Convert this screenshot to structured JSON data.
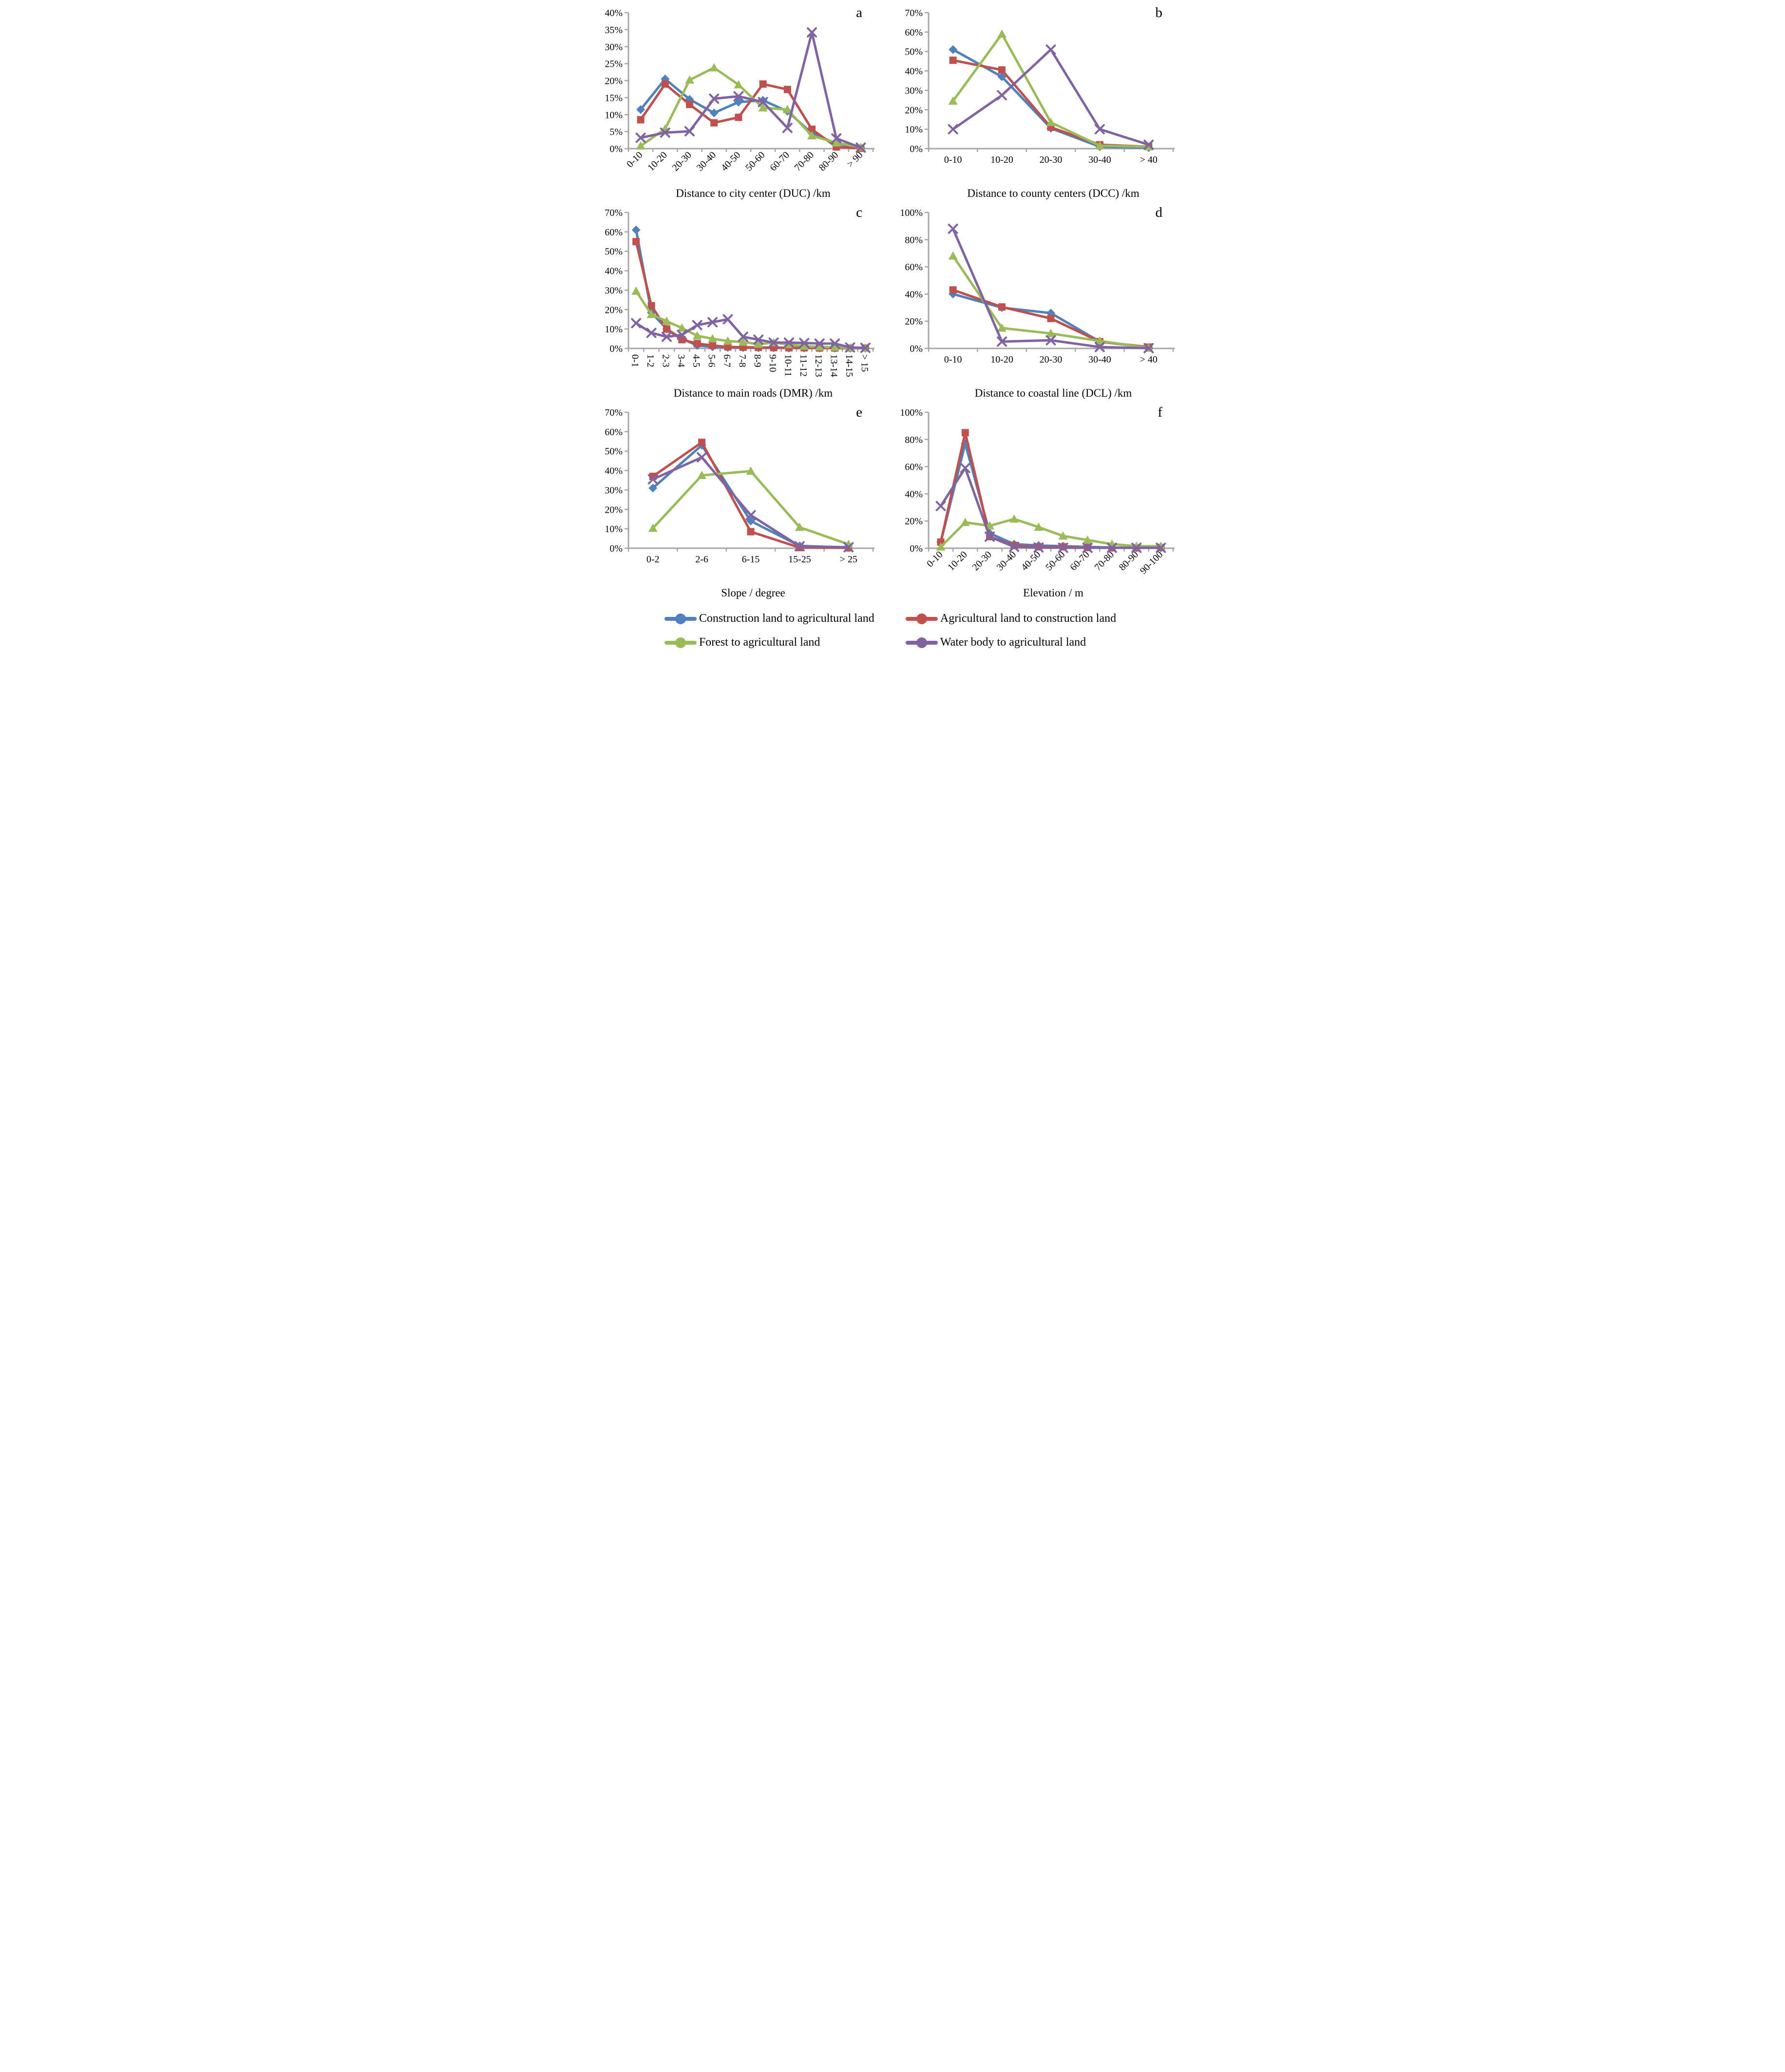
{
  "figure": {
    "axis_color": "#a6a6a6",
    "background": "#ffffff"
  },
  "chart_data": [
    {
      "id": "a",
      "type": "line",
      "panel_label": "a",
      "xlabel": "Distance to city center (DUC) /km",
      "ylabel": "",
      "ylim": [
        0,
        40
      ],
      "ytick_step": 5,
      "ytick_format": "percent",
      "grid": false,
      "x_label_rotation": -45,
      "categories": [
        "0-10",
        "10-20",
        "20-30",
        "30-40",
        "40-50",
        "50-60",
        "60-70",
        "70-80",
        "80-90",
        "> 90"
      ],
      "series": [
        {
          "name": "Construction land to agricultural land",
          "color": "#4F81BD",
          "marker": "diamond",
          "values": [
            11.5,
            20.5,
            14.5,
            10.5,
            13.7,
            14.2,
            11,
            4.5,
            1.5,
            0.2
          ]
        },
        {
          "name": "Agricultural land to construction land",
          "color": "#C0504D",
          "marker": "square",
          "values": [
            8.5,
            19,
            13,
            7.6,
            9.2,
            19,
            17.4,
            5.7,
            0.5,
            0.1
          ]
        },
        {
          "name": "Forest to agricultural land",
          "color": "#9BBB59",
          "marker": "triangle",
          "values": [
            0.8,
            5.8,
            20.2,
            23.8,
            18.8,
            12,
            11.5,
            3.8,
            1.7,
            0.4
          ]
        },
        {
          "name": "Water body to agricultural land",
          "color": "#8064A2",
          "marker": "x",
          "values": [
            3.2,
            4.7,
            5.1,
            14.7,
            15.4,
            13.7,
            6.1,
            34.2,
            3,
            0.3
          ]
        }
      ]
    },
    {
      "id": "b",
      "type": "line",
      "panel_label": "b",
      "xlabel": "Distance to county centers (DCC) /km",
      "ylabel": "",
      "ylim": [
        0,
        70
      ],
      "ytick_step": 10,
      "ytick_format": "percent",
      "grid": false,
      "x_label_rotation": 0,
      "categories": [
        "0-10",
        "10-20",
        "20-30",
        "30-40",
        "> 40"
      ],
      "series": [
        {
          "name": "Construction land to agricultural land",
          "color": "#4F81BD",
          "marker": "diamond",
          "values": [
            51,
            37,
            10.5,
            1,
            0.5
          ]
        },
        {
          "name": "Agricultural land to construction land",
          "color": "#C0504D",
          "marker": "square",
          "values": [
            45.5,
            40.5,
            11,
            2,
            1
          ]
        },
        {
          "name": "Forest to agricultural land",
          "color": "#9BBB59",
          "marker": "triangle",
          "values": [
            24.5,
            59,
            13.5,
            1.5,
            1
          ]
        },
        {
          "name": "Water body to agricultural land",
          "color": "#8064A2",
          "marker": "x",
          "values": [
            10,
            27.5,
            51,
            10,
            2
          ]
        }
      ]
    },
    {
      "id": "c",
      "type": "line",
      "panel_label": "c",
      "xlabel": "Distance to main roads (DMR) /km",
      "ylabel": "",
      "ylim": [
        0,
        70
      ],
      "ytick_step": 10,
      "ytick_format": "percent",
      "grid": false,
      "x_label_rotation": 90,
      "categories": [
        "0-1",
        "1-2",
        "2-3",
        "3-4",
        "4-5",
        "5-6",
        "6-7",
        "7-8",
        "8-9",
        "9-10",
        "10-11",
        "11-12",
        "12-13",
        "13-14",
        "14-15",
        "> 15"
      ],
      "series": [
        {
          "name": "Construction land to agricultural land",
          "color": "#4F81BD",
          "marker": "diamond",
          "values": [
            61,
            18.5,
            10,
            5,
            1.5,
            0.8,
            0.5,
            0.4,
            0.3,
            0.3,
            0.2,
            0.2,
            0.2,
            0.1,
            0.1,
            0.1
          ]
        },
        {
          "name": "Agricultural land to construction land",
          "color": "#C0504D",
          "marker": "square",
          "values": [
            55,
            22,
            10,
            4.5,
            2.5,
            1.5,
            0.8,
            0.6,
            0.5,
            0.4,
            0.3,
            0.3,
            0.2,
            0.2,
            0.2,
            0.2
          ]
        },
        {
          "name": "Forest to agricultural land",
          "color": "#9BBB59",
          "marker": "triangle",
          "values": [
            29.5,
            17.5,
            14,
            10.5,
            6.5,
            5,
            3.8,
            3.3,
            2.2,
            3,
            2,
            1.2,
            0.8,
            0.6,
            0.3,
            0.2
          ]
        },
        {
          "name": "Water body to agricultural land",
          "color": "#8064A2",
          "marker": "x",
          "values": [
            13,
            8,
            6,
            7,
            12,
            13.5,
            15,
            6,
            4.5,
            3,
            3,
            2.8,
            2.5,
            2.5,
            0.5,
            0.3
          ]
        }
      ]
    },
    {
      "id": "d",
      "type": "line",
      "panel_label": "d",
      "xlabel": "Distance to coastal line (DCL) /km",
      "ylabel": "",
      "ylim": [
        0,
        100
      ],
      "ytick_step": 20,
      "ytick_format": "percent",
      "grid": false,
      "x_label_rotation": 0,
      "categories": [
        "0-10",
        "10-20",
        "20-30",
        "30-40",
        "> 40"
      ],
      "series": [
        {
          "name": "Construction land to agricultural land",
          "color": "#4F81BD",
          "marker": "diamond",
          "values": [
            40,
            30,
            26,
            5,
            0.5
          ]
        },
        {
          "name": "Agricultural land to construction land",
          "color": "#C0504D",
          "marker": "square",
          "values": [
            43,
            30.5,
            22,
            5,
            1
          ]
        },
        {
          "name": "Forest to agricultural land",
          "color": "#9BBB59",
          "marker": "triangle",
          "values": [
            68,
            15,
            11,
            5.5,
            0.3
          ]
        },
        {
          "name": "Water body to agricultural land",
          "color": "#8064A2",
          "marker": "x",
          "values": [
            88,
            5,
            6,
            1,
            0.2
          ]
        }
      ]
    },
    {
      "id": "e",
      "type": "line",
      "panel_label": "e",
      "xlabel": "Slope / degree",
      "ylabel": "",
      "ylim": [
        0,
        70
      ],
      "ytick_step": 10,
      "ytick_format": "percent",
      "grid": false,
      "x_label_rotation": 0,
      "categories": [
        "0-2",
        "2-6",
        "6-15",
        "15-25",
        "> 25"
      ],
      "series": [
        {
          "name": "Construction land to agricultural land",
          "color": "#4F81BD",
          "marker": "diamond",
          "values": [
            31,
            53,
            14,
            1.2,
            0.3
          ]
        },
        {
          "name": "Agricultural land to construction land",
          "color": "#C0504D",
          "marker": "square",
          "values": [
            37,
            54.5,
            8.5,
            0.3,
            0.2
          ]
        },
        {
          "name": "Forest to agricultural land",
          "color": "#9BBB59",
          "marker": "triangle",
          "values": [
            10.3,
            37.5,
            39.7,
            10.8,
            2
          ]
        },
        {
          "name": "Water body to agricultural land",
          "color": "#8064A2",
          "marker": "x",
          "values": [
            35.5,
            46.8,
            17,
            1,
            0.5
          ]
        }
      ]
    },
    {
      "id": "f",
      "type": "line",
      "panel_label": "f",
      "xlabel": "Elevation / m",
      "ylabel": "",
      "ylim": [
        0,
        100
      ],
      "ytick_step": 20,
      "ytick_format": "percent",
      "grid": false,
      "x_label_rotation": -45,
      "categories": [
        "0-10",
        "10-20",
        "20-30",
        "30-40",
        "40-50",
        "50-60",
        "60-70",
        "70-80",
        "80-90",
        "90-100"
      ],
      "series": [
        {
          "name": "Construction land to agricultural land",
          "color": "#4F81BD",
          "marker": "diamond",
          "values": [
            4.5,
            77,
            11,
            3,
            2,
            1.5,
            1,
            0.5,
            0.3,
            0.3
          ]
        },
        {
          "name": "Agricultural land to construction land",
          "color": "#C0504D",
          "marker": "square",
          "values": [
            4.5,
            85,
            8.5,
            2,
            1,
            1,
            0.5,
            0.3,
            0.3,
            0.5
          ]
        },
        {
          "name": "Forest to agricultural land",
          "color": "#9BBB59",
          "marker": "triangle",
          "values": [
            1,
            19,
            16.5,
            21.5,
            15.5,
            9,
            6,
            3,
            1.5,
            1.5
          ]
        },
        {
          "name": "Water body to agricultural land",
          "color": "#8064A2",
          "marker": "x",
          "values": [
            31,
            59,
            8.5,
            1,
            0.5,
            0.3,
            0.3,
            0.3,
            0.3,
            0.3
          ]
        }
      ]
    }
  ],
  "legend": {
    "position": "bottom",
    "items": [
      {
        "label": "Construction land to agricultural land",
        "color": "#4F81BD",
        "marker": "circle"
      },
      {
        "label": "Agricultural land to construction land",
        "color": "#C0504D",
        "marker": "circle"
      },
      {
        "label": "Forest to agricultural land",
        "color": "#9BBB59",
        "marker": "circle"
      },
      {
        "label": "Water body to agricultural land",
        "color": "#8064A2",
        "marker": "circle"
      }
    ]
  }
}
